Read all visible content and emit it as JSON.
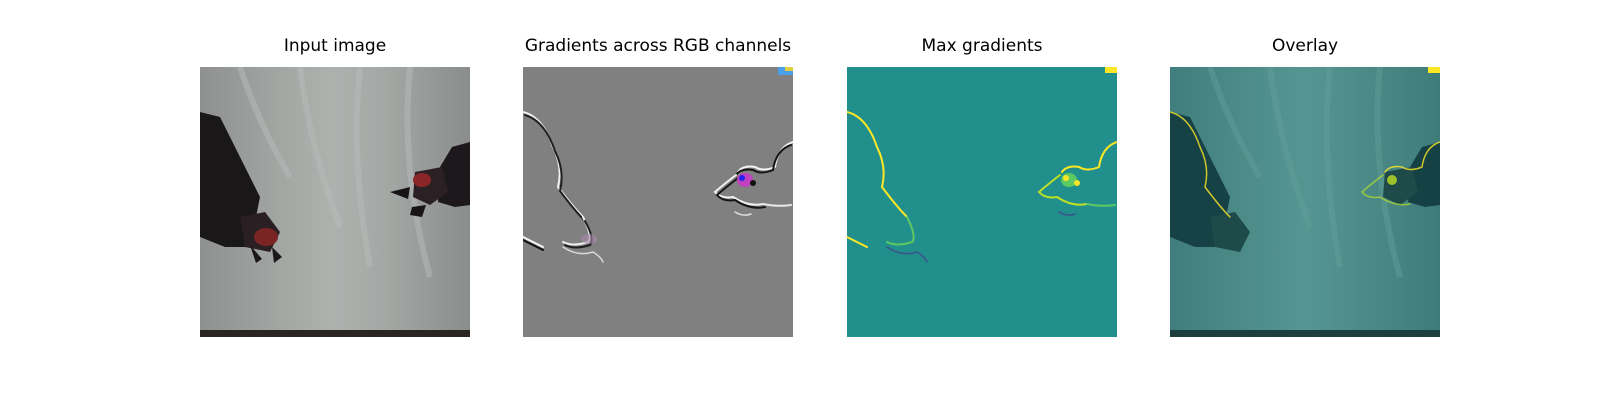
{
  "figure": {
    "panels": [
      {
        "title": "Input image"
      },
      {
        "title": "Gradients across RGB channels"
      },
      {
        "title": "Max gradients"
      },
      {
        "title": "Overlay"
      }
    ]
  }
}
